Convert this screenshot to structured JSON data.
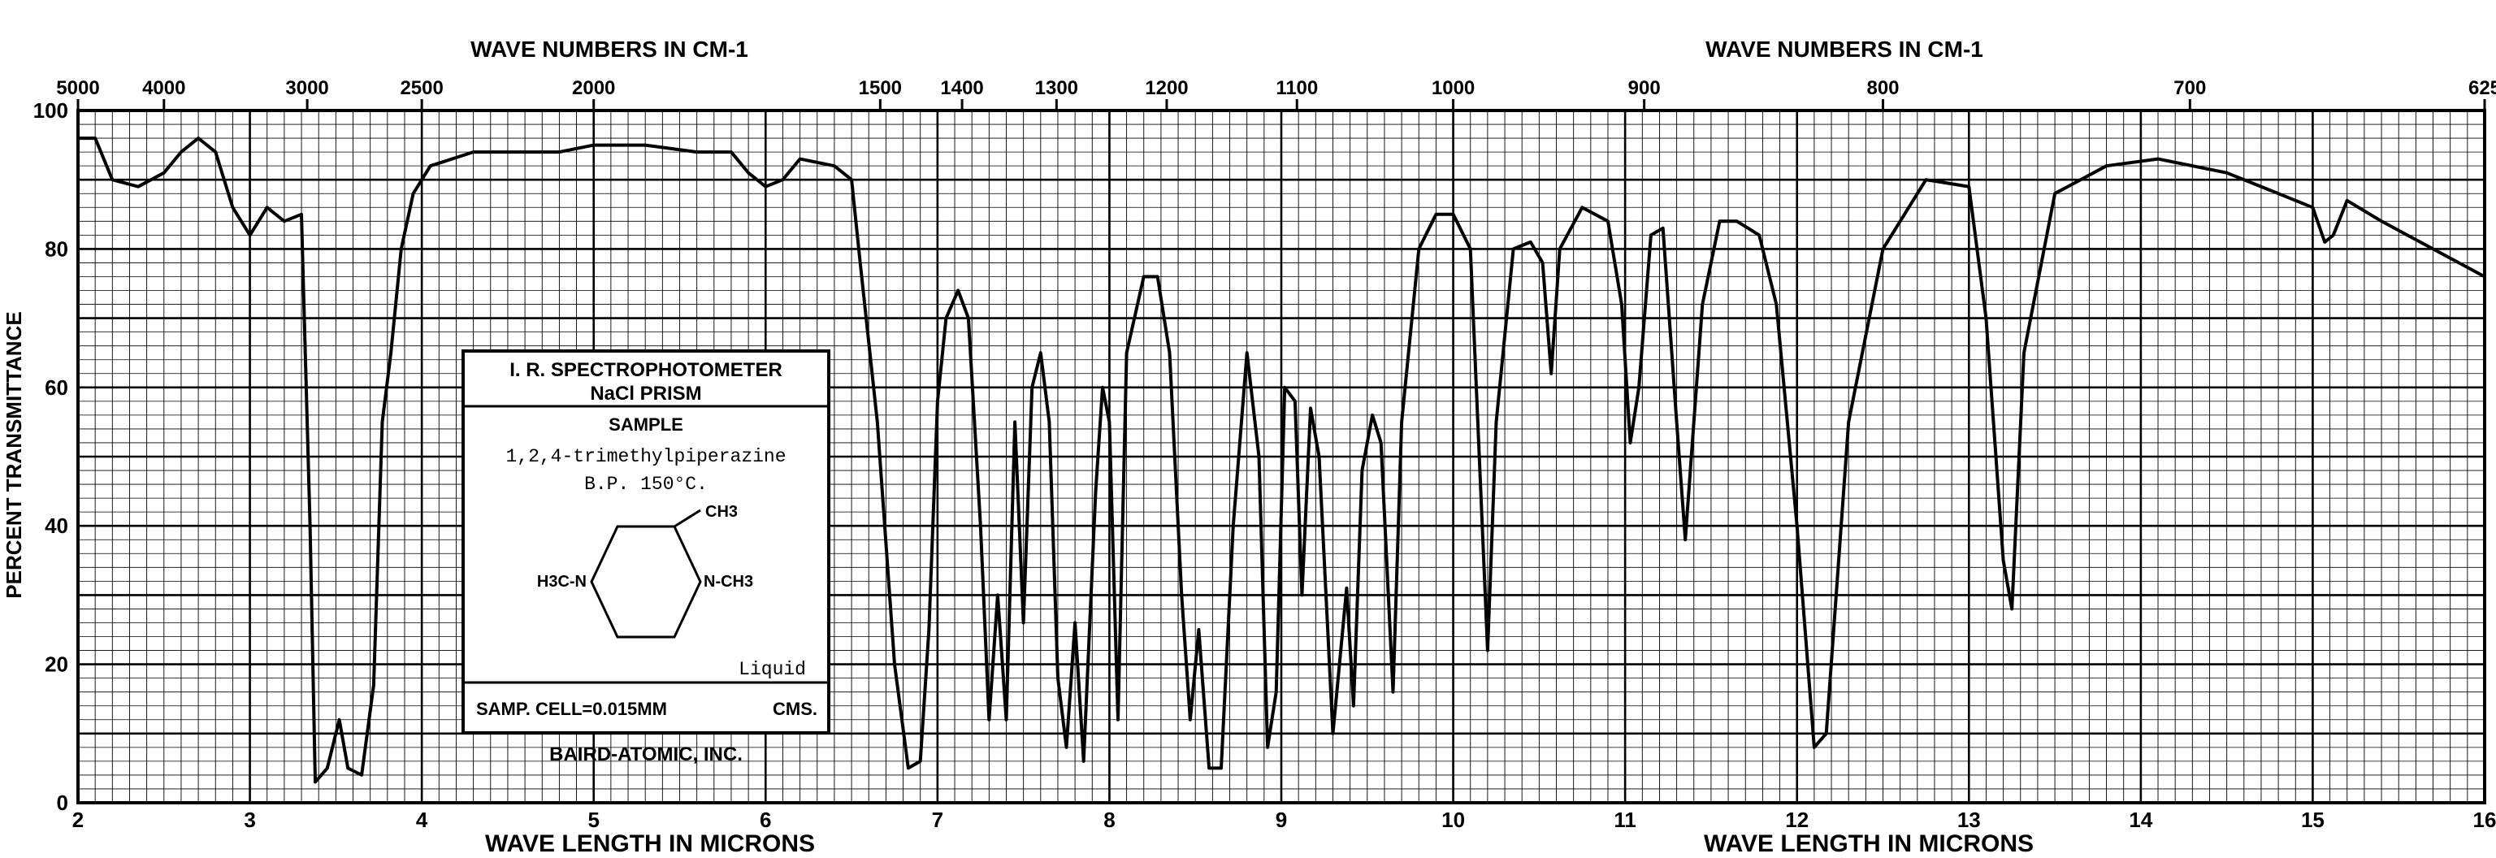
{
  "chart_data": {
    "type": "line",
    "title": "",
    "xlabel": "WAVE LENGTH IN MICRONS",
    "ylabel": "PERCENT TRANSMITTANCE",
    "top_axis_label": "WAVE NUMBERS IN CM-1",
    "xlim": [
      2,
      16
    ],
    "ylim": [
      0,
      100
    ],
    "grid": true,
    "x_ticks": [
      2,
      3,
      4,
      5,
      6,
      7,
      8,
      9,
      10,
      11,
      12,
      13,
      14,
      15,
      16
    ],
    "x_tick_labels": [
      "2",
      "3",
      "4",
      "5",
      "6",
      "7",
      "8",
      "9",
      "10",
      "11",
      "12",
      "13",
      "14",
      "15",
      "16"
    ],
    "y_ticks": [
      0,
      20,
      40,
      60,
      80,
      100
    ],
    "y_tick_labels": [
      "0",
      "20",
      "40",
      "60",
      "80",
      "100"
    ],
    "top_ticks": [
      {
        "label": "5000",
        "wn": 5000
      },
      {
        "label": "4000",
        "wn": 4000
      },
      {
        "label": "3000",
        "wn": 3000
      },
      {
        "label": "2500",
        "wn": 2500
      },
      {
        "label": "2000",
        "wn": 2000
      },
      {
        "label": "1500",
        "wn": 1500
      },
      {
        "label": "1400",
        "wn": 1400
      },
      {
        "label": "1300",
        "wn": 1300
      },
      {
        "label": "1200",
        "wn": 1200
      },
      {
        "label": "1100",
        "wn": 1100
      },
      {
        "label": "1000",
        "wn": 1000
      },
      {
        "label": "900",
        "wn": 900
      },
      {
        "label": "800",
        "wn": 800
      },
      {
        "label": "700",
        "wn": 700
      },
      {
        "label": "625",
        "wn": 625
      }
    ],
    "series": [
      {
        "points": [
          [
            2.0,
            96
          ],
          [
            2.1,
            96
          ],
          [
            2.2,
            90
          ],
          [
            2.35,
            89
          ],
          [
            2.5,
            91
          ],
          [
            2.6,
            94
          ],
          [
            2.7,
            96
          ],
          [
            2.8,
            94
          ],
          [
            2.9,
            86
          ],
          [
            3.0,
            82
          ],
          [
            3.1,
            86
          ],
          [
            3.2,
            84
          ],
          [
            3.3,
            85
          ],
          [
            3.35,
            40
          ],
          [
            3.38,
            3
          ],
          [
            3.45,
            5
          ],
          [
            3.52,
            12
          ],
          [
            3.57,
            5
          ],
          [
            3.65,
            4
          ],
          [
            3.72,
            17
          ],
          [
            3.77,
            55
          ],
          [
            3.82,
            65
          ],
          [
            3.88,
            80
          ],
          [
            3.95,
            88
          ],
          [
            4.05,
            92
          ],
          [
            4.3,
            94
          ],
          [
            4.5,
            94
          ],
          [
            4.8,
            94
          ],
          [
            5.0,
            95
          ],
          [
            5.3,
            95
          ],
          [
            5.6,
            94
          ],
          [
            5.8,
            94
          ],
          [
            5.9,
            91
          ],
          [
            6.0,
            89
          ],
          [
            6.1,
            90
          ],
          [
            6.2,
            93
          ],
          [
            6.4,
            92
          ],
          [
            6.5,
            90
          ],
          [
            6.55,
            78
          ],
          [
            6.65,
            55
          ],
          [
            6.75,
            20
          ],
          [
            6.83,
            5
          ],
          [
            6.9,
            6
          ],
          [
            6.95,
            25
          ],
          [
            7.0,
            58
          ],
          [
            7.05,
            70
          ],
          [
            7.12,
            74
          ],
          [
            7.18,
            70
          ],
          [
            7.25,
            40
          ],
          [
            7.3,
            12
          ],
          [
            7.35,
            30
          ],
          [
            7.4,
            12
          ],
          [
            7.45,
            55
          ],
          [
            7.5,
            26
          ],
          [
            7.55,
            60
          ],
          [
            7.6,
            65
          ],
          [
            7.65,
            55
          ],
          [
            7.7,
            18
          ],
          [
            7.75,
            8
          ],
          [
            7.8,
            26
          ],
          [
            7.85,
            6
          ],
          [
            7.92,
            45
          ],
          [
            7.96,
            60
          ],
          [
            8.0,
            55
          ],
          [
            8.05,
            12
          ],
          [
            8.1,
            65
          ],
          [
            8.2,
            76
          ],
          [
            8.28,
            76
          ],
          [
            8.35,
            65
          ],
          [
            8.42,
            30
          ],
          [
            8.47,
            12
          ],
          [
            8.52,
            25
          ],
          [
            8.58,
            5
          ],
          [
            8.65,
            5
          ],
          [
            8.72,
            40
          ],
          [
            8.8,
            65
          ],
          [
            8.87,
            50
          ],
          [
            8.92,
            8
          ],
          [
            8.97,
            16
          ],
          [
            9.02,
            60
          ],
          [
            9.08,
            58
          ],
          [
            9.12,
            30
          ],
          [
            9.17,
            57
          ],
          [
            9.22,
            50
          ],
          [
            9.3,
            10
          ],
          [
            9.38,
            31
          ],
          [
            9.42,
            14
          ],
          [
            9.47,
            48
          ],
          [
            9.53,
            56
          ],
          [
            9.58,
            52
          ],
          [
            9.65,
            16
          ],
          [
            9.7,
            55
          ],
          [
            9.8,
            80
          ],
          [
            9.9,
            85
          ],
          [
            10.0,
            85
          ],
          [
            10.1,
            80
          ],
          [
            10.2,
            22
          ],
          [
            10.25,
            55
          ],
          [
            10.35,
            80
          ],
          [
            10.45,
            81
          ],
          [
            10.52,
            78
          ],
          [
            10.57,
            62
          ],
          [
            10.62,
            80
          ],
          [
            10.75,
            86
          ],
          [
            10.9,
            84
          ],
          [
            10.98,
            72
          ],
          [
            11.03,
            52
          ],
          [
            11.08,
            60
          ],
          [
            11.15,
            82
          ],
          [
            11.22,
            83
          ],
          [
            11.3,
            55
          ],
          [
            11.35,
            38
          ],
          [
            11.45,
            72
          ],
          [
            11.55,
            84
          ],
          [
            11.65,
            84
          ],
          [
            11.78,
            82
          ],
          [
            11.88,
            72
          ],
          [
            12.0,
            40
          ],
          [
            12.1,
            8
          ],
          [
            12.17,
            10
          ],
          [
            12.3,
            55
          ],
          [
            12.5,
            80
          ],
          [
            12.75,
            90
          ],
          [
            13.0,
            89
          ],
          [
            13.1,
            70
          ],
          [
            13.2,
            35
          ],
          [
            13.25,
            28
          ],
          [
            13.32,
            65
          ],
          [
            13.5,
            88
          ],
          [
            13.8,
            92
          ],
          [
            14.1,
            93
          ],
          [
            14.5,
            91
          ],
          [
            14.8,
            88
          ],
          [
            15.0,
            86
          ],
          [
            15.07,
            81
          ],
          [
            15.12,
            82
          ],
          [
            15.2,
            87
          ],
          [
            15.4,
            84
          ],
          [
            15.7,
            80
          ],
          [
            16.0,
            76
          ]
        ]
      }
    ],
    "info_box": {
      "title": "I. R. SPECTROPHOTOMETER",
      "prism": "NaCl PRISM",
      "sample_label": "SAMPLE",
      "sample_name": "1,2,4-trimethylpiperazine",
      "bp": "B.P. 150°C.",
      "methyl_top": "CH3",
      "left_group": "H3C-N",
      "right_group": "N-CH3",
      "state": "Liquid",
      "cell": "SAMP. CELL=0.015MM",
      "cell_unit": "CMS.",
      "maker": "BAIRD-ATOMIC, INC."
    }
  }
}
